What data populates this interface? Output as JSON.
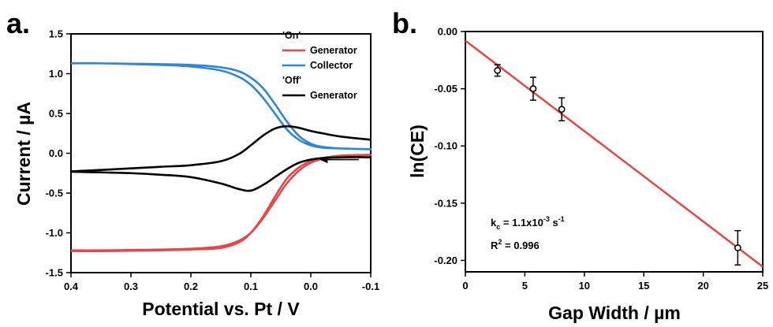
{
  "chart_data": [
    {
      "panel_label": "a.",
      "type": "line",
      "xlabel": "Potential vs. Pt / V",
      "ylabel": "Current / µA",
      "xlim": [
        0.4,
        -0.1
      ],
      "x_reversed": true,
      "ylim": [
        -1.5,
        1.5
      ],
      "x_ticks": [
        "0.4",
        "0.3",
        "0.2",
        "0.1",
        "0.0",
        "-0.1"
      ],
      "y_ticks": [
        "1.5",
        "1.0",
        "0.5",
        "0.0",
        "-0.5",
        "-1.0",
        "-1.5"
      ],
      "grid": false,
      "legend_position": "top-right",
      "legend": [
        {
          "type": "header",
          "text": "'On'"
        },
        {
          "type": "entry",
          "text": "Generator",
          "color": "#e8474a"
        },
        {
          "type": "entry",
          "text": "Collector",
          "color": "#2f86e0"
        },
        {
          "type": "header",
          "text": "'Off'"
        },
        {
          "type": "entry",
          "text": "Generator",
          "color": "#000000"
        }
      ],
      "scan_direction_arrow": {
        "from": [
          -0.08,
          -0.08
        ],
        "to": [
          -0.015,
          -0.08
        ]
      },
      "series": [
        {
          "name": "Generator",
          "group": "'On'",
          "color": "#e8474a",
          "x": [
            0.4,
            0.35,
            0.3,
            0.25,
            0.2,
            0.15,
            0.12,
            0.1,
            0.08,
            0.06,
            0.04,
            0.02,
            0.0,
            -0.02,
            -0.05,
            -0.1,
            -0.05,
            -0.02,
            0.0,
            0.02,
            0.04,
            0.06,
            0.08,
            0.1,
            0.12,
            0.15,
            0.2,
            0.25,
            0.3,
            0.35,
            0.4
          ],
          "y": [
            -1.22,
            -1.22,
            -1.215,
            -1.21,
            -1.2,
            -1.17,
            -1.1,
            -1.0,
            -0.82,
            -0.6,
            -0.38,
            -0.22,
            -0.12,
            -0.07,
            -0.04,
            -0.02,
            -0.03,
            -0.06,
            -0.1,
            -0.18,
            -0.32,
            -0.55,
            -0.8,
            -1.0,
            -1.12,
            -1.19,
            -1.21,
            -1.22,
            -1.225,
            -1.23,
            -1.23
          ]
        },
        {
          "name": "Collector",
          "group": "'On'",
          "color": "#2f86e0",
          "x": [
            0.4,
            0.35,
            0.3,
            0.25,
            0.2,
            0.15,
            0.12,
            0.1,
            0.08,
            0.06,
            0.04,
            0.02,
            0.0,
            -0.02,
            -0.05,
            -0.1,
            -0.05,
            -0.02,
            0.0,
            0.02,
            0.04,
            0.06,
            0.08,
            0.1,
            0.12,
            0.15,
            0.2,
            0.25,
            0.3,
            0.35,
            0.4
          ],
          "y": [
            1.13,
            1.13,
            1.12,
            1.11,
            1.09,
            1.04,
            0.96,
            0.86,
            0.7,
            0.5,
            0.3,
            0.17,
            0.1,
            0.07,
            0.06,
            0.05,
            0.06,
            0.08,
            0.12,
            0.22,
            0.4,
            0.62,
            0.82,
            0.95,
            1.03,
            1.08,
            1.11,
            1.12,
            1.125,
            1.13,
            1.13
          ]
        },
        {
          "name": "Generator",
          "group": "'Off'",
          "color": "#000000",
          "x": [
            -0.1,
            -0.06,
            -0.02,
            0.0,
            0.02,
            0.04,
            0.06,
            0.08,
            0.1,
            0.12,
            0.15,
            0.2,
            0.25,
            0.3,
            0.35,
            0.4,
            0.35,
            0.3,
            0.25,
            0.2,
            0.15,
            0.12,
            0.1,
            0.08,
            0.06,
            0.04,
            0.02,
            0.0,
            -0.02,
            -0.05,
            -0.1
          ],
          "y": [
            -0.05,
            -0.05,
            -0.06,
            -0.08,
            -0.12,
            -0.2,
            -0.3,
            -0.4,
            -0.47,
            -0.45,
            -0.38,
            -0.3,
            -0.27,
            -0.25,
            -0.24,
            -0.23,
            -0.21,
            -0.19,
            -0.17,
            -0.15,
            -0.1,
            -0.01,
            0.1,
            0.22,
            0.31,
            0.34,
            0.32,
            0.28,
            0.25,
            0.21,
            0.17
          ]
        }
      ]
    },
    {
      "panel_label": "b.",
      "type": "scatter",
      "xlabel": "Gap Width / µm",
      "ylabel": "ln(CE)",
      "xlim": [
        0,
        25
      ],
      "ylim": [
        -0.21,
        0.0
      ],
      "x_ticks": [
        "0",
        "5",
        "10",
        "15",
        "20",
        "25"
      ],
      "y_ticks": [
        "0.00",
        "-0.05",
        "-0.10",
        "-0.15",
        "-0.20"
      ],
      "grid": false,
      "points": [
        {
          "x": 2.7,
          "y": -0.034,
          "err": 0.005
        },
        {
          "x": 5.7,
          "y": -0.05,
          "err": 0.01
        },
        {
          "x": 8.1,
          "y": -0.068,
          "err": 0.01
        },
        {
          "x": 22.9,
          "y": -0.189,
          "err": 0.015
        }
      ],
      "fit_line": {
        "x": [
          0,
          25
        ],
        "y": [
          -0.008,
          -0.2055
        ],
        "color": "#e8474a"
      },
      "annotation": {
        "kc_prefix": "k",
        "kc_sub": "c",
        "kc_main": " = 1.1x10",
        "kc_exp": "-3",
        "kc_unit": " s",
        "kc_unit_exp": "-1",
        "r2_prefix": "R",
        "r2_exp": "2",
        "r2_value": " = 0.996"
      }
    }
  ]
}
